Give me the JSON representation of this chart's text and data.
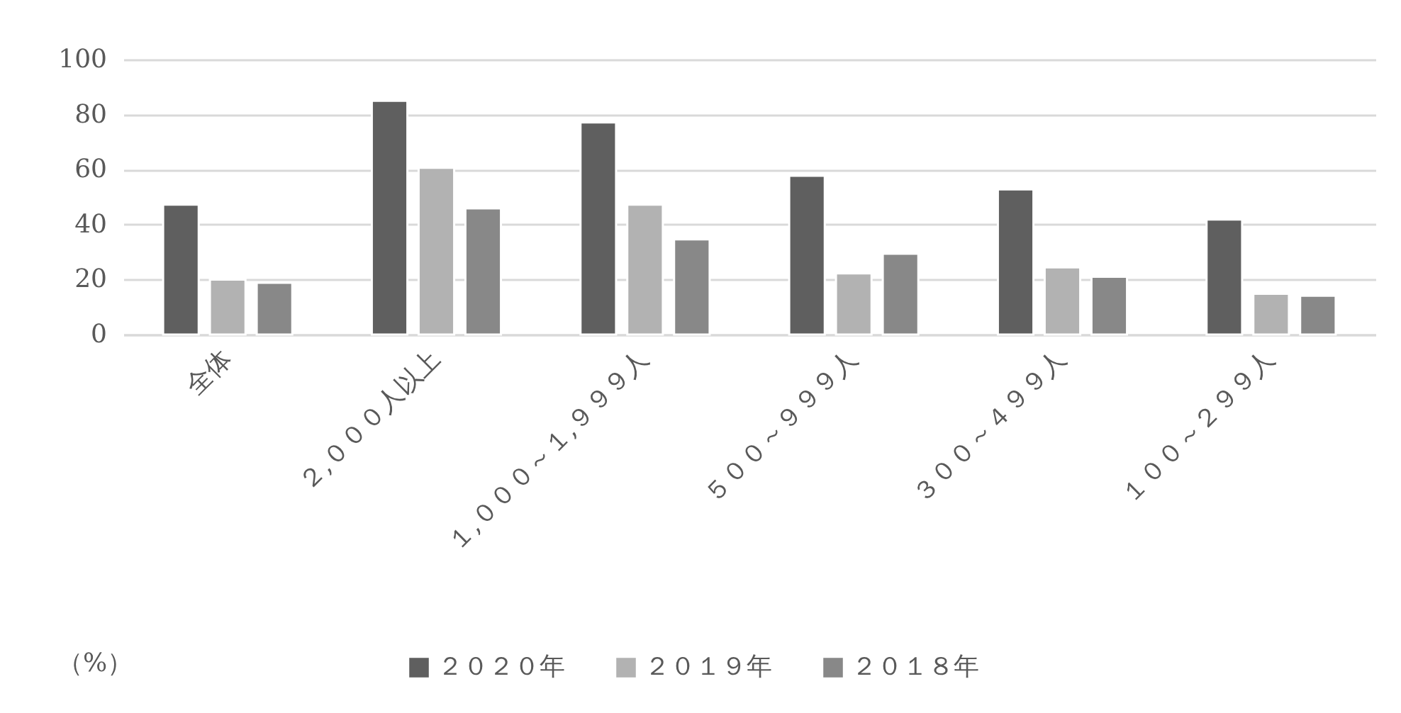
{
  "chart_data": {
    "type": "bar",
    "ylabel": "（%）",
    "categories": [
      "全体",
      "２,０００人以上",
      "１,０００～１,９９９人",
      "５００～９９９人",
      "３００～４９９人",
      "１００～２９９人"
    ],
    "series": [
      {
        "name": "２０２０年",
        "color": "#5f5f5f",
        "values": [
          47.2,
          85.0,
          77.1,
          57.7,
          52.8,
          41.8
        ]
      },
      {
        "name": "２０１９年",
        "color": "#b2b2b2",
        "values": [
          20.0,
          60.6,
          47.2,
          22.2,
          24.4,
          14.8
        ]
      },
      {
        "name": "２０１８年",
        "color": "#888888",
        "values": [
          18.8,
          45.9,
          34.6,
          29.4,
          21.0,
          14.1
        ]
      }
    ],
    "ylim": [
      0,
      100
    ],
    "yticks": [
      0,
      20,
      40,
      60,
      80,
      100
    ],
    "grid": "y",
    "legend": "bottom"
  }
}
